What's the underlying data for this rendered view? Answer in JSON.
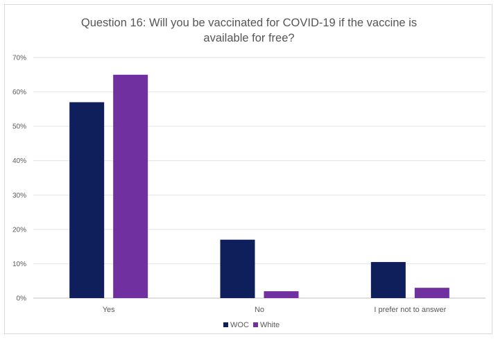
{
  "chart_data": {
    "type": "bar",
    "title_lines": [
      "Question 16: Will you be vaccinated for COVID-19 if the vaccine is",
      "available for free?"
    ],
    "categories": [
      "Yes",
      "No",
      "I prefer not to answer"
    ],
    "series": [
      {
        "name": "WOC",
        "values": [
          0.57,
          0.17,
          0.105
        ],
        "color": "#0f1f5c"
      },
      {
        "name": "White",
        "values": [
          0.65,
          0.02,
          0.03
        ],
        "color": "#7030a0"
      }
    ],
    "ylim": [
      0,
      0.7
    ],
    "yticks": [
      0,
      0.1,
      0.2,
      0.3,
      0.4,
      0.5,
      0.6,
      0.7
    ],
    "ytick_labels": [
      "0%",
      "10%",
      "20%",
      "30%",
      "40%",
      "50%",
      "60%",
      "70%"
    ],
    "grid": true,
    "legend_position": "bottom"
  }
}
